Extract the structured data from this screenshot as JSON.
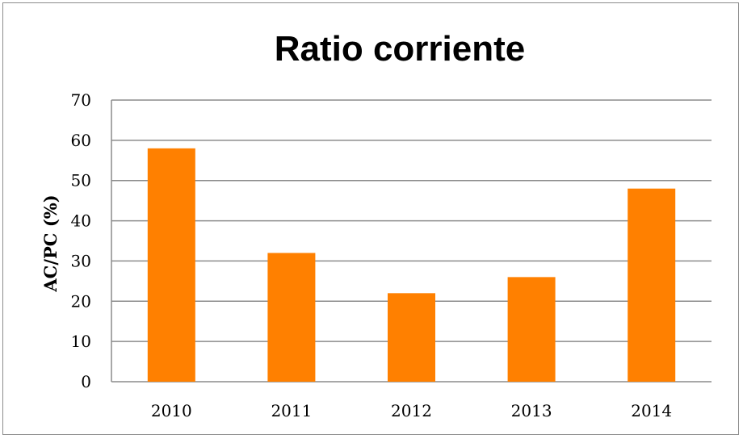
{
  "chart_data": {
    "type": "bar",
    "title": "Ratio corriente",
    "xlabel": "",
    "ylabel": "AC/PC (%)",
    "categories": [
      "2010",
      "2011",
      "2012",
      "2013",
      "2014"
    ],
    "values": [
      58,
      32,
      22,
      26,
      48
    ],
    "ylim": [
      0,
      70
    ],
    "yticks": [
      "0",
      "10",
      "20",
      "30",
      "40",
      "50",
      "60",
      "70"
    ],
    "grid": true,
    "legend": "none",
    "colors": {
      "bar": "#ff8000",
      "grid": "#8c8c8c",
      "frame": "#8c8c8c"
    }
  }
}
